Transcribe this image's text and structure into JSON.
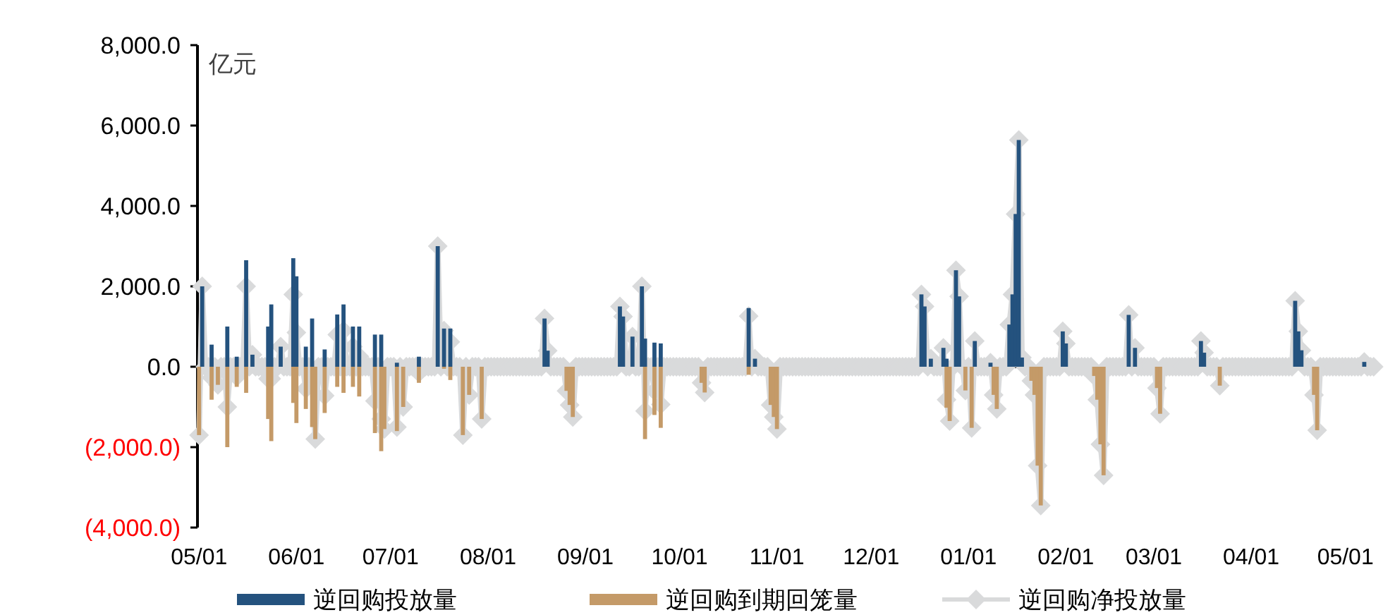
{
  "chart_data": {
    "type": "bar",
    "ylabel": "亿元",
    "legend": "bottom",
    "categories": [
      "05/01",
      null,
      null,
      null,
      null,
      null,
      null,
      null,
      null,
      null,
      null,
      null,
      null,
      null,
      null,
      null,
      null,
      null,
      null,
      null,
      null,
      null,
      null,
      null,
      null,
      null,
      null,
      null,
      null,
      null,
      null,
      "06/01",
      null,
      null,
      null,
      null,
      null,
      null,
      null,
      null,
      null,
      null,
      null,
      null,
      null,
      null,
      null,
      null,
      null,
      null,
      null,
      null,
      null,
      null,
      null,
      null,
      null,
      null,
      null,
      null,
      null,
      "07/01",
      null,
      null,
      null,
      null,
      null,
      null,
      null,
      null,
      null,
      null,
      null,
      null,
      null,
      null,
      null,
      null,
      null,
      null,
      null,
      null,
      null,
      null,
      null,
      null,
      null,
      null,
      null,
      null,
      null,
      null,
      "08/01",
      null,
      null,
      null,
      null,
      null,
      null,
      null,
      null,
      null,
      null,
      null,
      null,
      null,
      null,
      null,
      null,
      null,
      null,
      null,
      null,
      null,
      null,
      null,
      null,
      null,
      null,
      null,
      null,
      null,
      null,
      "09/01",
      null,
      null,
      null,
      null,
      null,
      null,
      null,
      null,
      null,
      null,
      null,
      null,
      null,
      null,
      null,
      null,
      null,
      null,
      null,
      null,
      null,
      null,
      null,
      null,
      null,
      null,
      null,
      null,
      null,
      "10/01",
      null,
      null,
      null,
      null,
      null,
      null,
      null,
      null,
      null,
      null,
      null,
      null,
      null,
      null,
      null,
      null,
      null,
      null,
      null,
      null,
      null,
      null,
      null,
      null,
      null,
      null,
      null,
      null,
      null,
      null,
      "11/01",
      null,
      null,
      null,
      null,
      null,
      null,
      null,
      null,
      null,
      null,
      null,
      null,
      null,
      null,
      null,
      null,
      null,
      null,
      null,
      null,
      null,
      null,
      null,
      null,
      null,
      null,
      null,
      null,
      null,
      "12/01",
      null,
      null,
      null,
      null,
      null,
      null,
      null,
      null,
      null,
      null,
      null,
      null,
      null,
      null,
      null,
      null,
      null,
      null,
      null,
      null,
      null,
      null,
      null,
      null,
      null,
      null,
      null,
      null,
      null,
      null,
      "01/01",
      null,
      null,
      null,
      null,
      null,
      null,
      null,
      null,
      null,
      null,
      null,
      null,
      null,
      null,
      null,
      null,
      null,
      null,
      null,
      null,
      null,
      null,
      null,
      null,
      null,
      null,
      null,
      null,
      null,
      null,
      "02/01",
      null,
      null,
      null,
      null,
      null,
      null,
      null,
      null,
      null,
      null,
      null,
      null,
      null,
      null,
      null,
      null,
      null,
      null,
      null,
      null,
      null,
      null,
      null,
      null,
      null,
      null,
      null,
      "03/01",
      null,
      null,
      null,
      null,
      null,
      null,
      null,
      null,
      null,
      null,
      null,
      null,
      null,
      null,
      null,
      null,
      null,
      null,
      null,
      null,
      null,
      null,
      null,
      null,
      null,
      null,
      null,
      null,
      null,
      null,
      "04/01",
      null,
      null,
      null,
      null,
      null,
      null,
      null,
      null,
      null,
      null,
      null,
      null,
      null,
      null,
      null,
      null,
      null,
      null,
      null,
      null,
      null,
      null,
      null,
      null,
      null,
      null,
      null,
      null,
      null,
      "05/01",
      null,
      null,
      null,
      null,
      null,
      null,
      null,
      null,
      null
    ],
    "series": [
      {
        "name": "逆回购投放量",
        "color": "#24527e",
        "values": [
          null,
          2000,
          null,
          null,
          550,
          null,
          null,
          null,
          null,
          1000,
          null,
          null,
          250,
          null,
          null,
          2650,
          null,
          300,
          null,
          null,
          null,
          null,
          1000,
          1550,
          null,
          null,
          500,
          null,
          null,
          null,
          2700,
          2250,
          null,
          null,
          500,
          null,
          1200,
          null,
          null,
          null,
          430,
          null,
          null,
          null,
          1300,
          null,
          1550,
          null,
          null,
          1000,
          null,
          1000,
          null,
          null,
          null,
          null,
          800,
          null,
          800,
          null,
          null,
          null,
          null,
          100,
          null,
          null,
          null,
          null,
          null,
          null,
          250,
          null,
          null,
          null,
          null,
          null,
          3000,
          null,
          950,
          null,
          950,
          null,
          null,
          null,
          null,
          null,
          null,
          null,
          null,
          null,
          null,
          null,
          null,
          null,
          null,
          null,
          null,
          null,
          null,
          null,
          null,
          null,
          null,
          null,
          null,
          null,
          null,
          null,
          null,
          null,
          1200,
          400,
          null,
          null,
          null,
          null,
          null,
          null,
          null,
          null,
          null,
          null,
          null,
          null,
          null,
          null,
          null,
          null,
          null,
          null,
          null,
          null,
          null,
          null,
          1500,
          1250,
          null,
          null,
          750,
          null,
          null,
          2000,
          700,
          null,
          null,
          600,
          null,
          580,
          null,
          null,
          null,
          null,
          null,
          null,
          null,
          null,
          null,
          null,
          null,
          null,
          null,
          null,
          null,
          null,
          null,
          null,
          null,
          null,
          null,
          null,
          null,
          null,
          null,
          null,
          null,
          1460,
          null,
          200,
          null,
          null,
          null,
          null,
          null,
          null,
          null,
          null,
          null,
          null,
          null,
          null,
          null,
          null,
          null,
          null,
          null,
          null,
          null,
          null,
          null,
          null,
          null,
          null,
          null,
          null,
          null,
          null,
          null,
          null,
          null,
          null,
          null,
          null,
          null,
          null,
          null,
          null,
          null,
          null,
          null,
          null,
          null,
          null,
          null,
          null,
          null,
          null,
          null,
          null,
          null,
          null,
          1800,
          1500,
          null,
          200,
          null,
          null,
          null,
          470,
          200,
          null,
          null,
          2400,
          1750,
          null,
          null,
          null,
          null,
          640,
          null,
          null,
          null,
          null,
          100,
          null,
          null,
          null,
          null,
          null,
          1050,
          1800,
          3800,
          5640,
          230,
          null,
          null,
          null,
          null,
          null,
          null,
          null,
          null,
          null,
          null,
          null,
          null,
          880,
          580,
          null,
          null,
          null,
          null,
          null,
          null,
          null,
          null,
          null,
          null,
          null,
          null,
          null,
          null,
          null,
          null,
          null,
          null,
          null,
          1290,
          null,
          470,
          null,
          null,
          null,
          null,
          null,
          null,
          null,
          null,
          null,
          null,
          null,
          null,
          null,
          null,
          null,
          null,
          null,
          null,
          null,
          null,
          640,
          350,
          null,
          null,
          null,
          null,
          null,
          null,
          null,
          null,
          null,
          null,
          null,
          null,
          null,
          null,
          null,
          null,
          null,
          null,
          null,
          null,
          null,
          null,
          null,
          null,
          null,
          null,
          null,
          null,
          1640,
          880,
          410,
          null,
          null,
          null,
          null,
          null,
          null,
          null,
          null,
          null,
          null,
          null,
          null,
          null,
          null,
          null,
          null,
          null,
          null,
          null,
          120,
          null,
          null,
          null
        ]
      },
      {
        "name": "逆回购到期回笼量",
        "color": "#c49a68",
        "values": [
          -1700,
          null,
          null,
          null,
          -820,
          null,
          -450,
          null,
          null,
          -2000,
          null,
          null,
          -500,
          null,
          null,
          -650,
          null,
          null,
          null,
          null,
          null,
          null,
          -1300,
          -1850,
          null,
          null,
          null,
          null,
          null,
          null,
          -900,
          -1400,
          null,
          null,
          -1050,
          null,
          -1500,
          -1800,
          null,
          null,
          -1150,
          null,
          null,
          null,
          -500,
          null,
          -650,
          null,
          null,
          -500,
          null,
          -740,
          null,
          null,
          null,
          null,
          -1650,
          null,
          -2100,
          -1550,
          null,
          null,
          null,
          -1600,
          null,
          -1000,
          null,
          null,
          null,
          null,
          -400,
          null,
          null,
          null,
          null,
          null,
          null,
          null,
          -50,
          null,
          -330,
          null,
          null,
          null,
          -1700,
          null,
          -700,
          null,
          null,
          null,
          -1300,
          null,
          null,
          null,
          null,
          null,
          null,
          null,
          null,
          null,
          null,
          null,
          null,
          null,
          null,
          null,
          null,
          null,
          null,
          null,
          null,
          null,
          null,
          null,
          null,
          null,
          null,
          -600,
          -950,
          -1250,
          null,
          null,
          null,
          null,
          null,
          null,
          null,
          null,
          null,
          null,
          null,
          null,
          null,
          null,
          null,
          null,
          null,
          null,
          null,
          null,
          null,
          null,
          -1800,
          null,
          null,
          -1200,
          null,
          -1520,
          null,
          null,
          null,
          null,
          null,
          null,
          null,
          null,
          null,
          null,
          null,
          null,
          -400,
          -640,
          null,
          null,
          null,
          null,
          null,
          null,
          null,
          null,
          null,
          null,
          null,
          null,
          null,
          -200,
          null,
          null,
          null,
          null,
          null,
          null,
          -950,
          -1250,
          -1550,
          null,
          null,
          null,
          null,
          null,
          null,
          null,
          null,
          null,
          null,
          null,
          null,
          null,
          null,
          null,
          null,
          null,
          null,
          null,
          null,
          null,
          null,
          null,
          null,
          null,
          null,
          null,
          null,
          null,
          null,
          null,
          null,
          null,
          null,
          null,
          null,
          null,
          null,
          null,
          null,
          null,
          null,
          null,
          null,
          null,
          null,
          null,
          null,
          null,
          null,
          null,
          null,
          null,
          -1020,
          -1350,
          null,
          null,
          null,
          null,
          -590,
          null,
          -1520,
          null,
          null,
          null,
          null,
          null,
          null,
          -700,
          -1050,
          null,
          null,
          null,
          null,
          null,
          null,
          null,
          null,
          null,
          null,
          -350,
          -700,
          -2460,
          -3450,
          null,
          null,
          null,
          null,
          null,
          null,
          null,
          null,
          null,
          null,
          null,
          null,
          null,
          null,
          null,
          null,
          -230,
          -820,
          -1930,
          -2700,
          null,
          null,
          null,
          null,
          null,
          null,
          null,
          null,
          null,
          null,
          null,
          null,
          null,
          null,
          null,
          null,
          -530,
          -1170,
          null,
          null,
          null,
          null,
          null,
          null,
          null,
          null,
          null,
          null,
          null,
          null,
          null,
          null,
          null,
          null,
          null,
          null,
          -470,
          null,
          null,
          null,
          null,
          null,
          null,
          null,
          null,
          null,
          null,
          null,
          null,
          null,
          null,
          null,
          null,
          null,
          null,
          null,
          null,
          null,
          null,
          null,
          null,
          null,
          null,
          null,
          null,
          null,
          -700,
          -1580,
          null,
          null,
          null,
          null,
          null,
          null,
          null,
          null,
          null,
          null,
          null,
          null,
          null,
          null,
          null,
          null,
          null,
          null
        ]
      },
      {
        "name": "逆回购净投放量",
        "type": "line",
        "color": "#d9dadb",
        "marker": "diamond",
        "values": [
          -1700,
          2000,
          0,
          0,
          -270,
          0,
          -450,
          0,
          0,
          -1000,
          0,
          0,
          -250,
          0,
          0,
          2000,
          0,
          300,
          0,
          0,
          0,
          0,
          -300,
          -300,
          0,
          0,
          500,
          0,
          0,
          0,
          1800,
          850,
          0,
          0,
          -550,
          0,
          -300,
          -1800,
          0,
          0,
          -720,
          0,
          0,
          0,
          800,
          0,
          900,
          0,
          0,
          500,
          0,
          260,
          0,
          0,
          0,
          0,
          -850,
          0,
          -1300,
          -1550,
          0,
          0,
          0,
          -1500,
          0,
          -1000,
          0,
          0,
          0,
          0,
          -150,
          0,
          0,
          0,
          0,
          0,
          3000,
          0,
          900,
          0,
          620,
          0,
          0,
          0,
          -1700,
          0,
          -700,
          0,
          0,
          0,
          -1300,
          0,
          0,
          0,
          0,
          0,
          0,
          0,
          0,
          0,
          0,
          0,
          0,
          0,
          0,
          0,
          0,
          0,
          0,
          0,
          1200,
          400,
          0,
          0,
          0,
          0,
          0,
          -600,
          -950,
          -1250,
          0,
          0,
          0,
          0,
          0,
          0,
          0,
          0,
          0,
          0,
          0,
          0,
          0,
          0,
          1500,
          1250,
          0,
          0,
          750,
          0,
          0,
          2000,
          -1100,
          0,
          0,
          -600,
          0,
          -940,
          0,
          0,
          0,
          0,
          0,
          0,
          0,
          0,
          0,
          0,
          0,
          0,
          -400,
          -640,
          0,
          0,
          0,
          0,
          0,
          0,
          0,
          0,
          0,
          0,
          0,
          0,
          0,
          1260,
          0,
          200,
          0,
          0,
          0,
          0,
          -950,
          -1250,
          -1550,
          0,
          0,
          0,
          0,
          0,
          0,
          0,
          0,
          0,
          0,
          0,
          0,
          0,
          0,
          0,
          0,
          0,
          0,
          0,
          0,
          0,
          0,
          0,
          0,
          0,
          0,
          0,
          0,
          0,
          0,
          0,
          0,
          0,
          0,
          0,
          0,
          0,
          0,
          0,
          0,
          0,
          0,
          0,
          0,
          0,
          1800,
          1500,
          0,
          200,
          0,
          0,
          0,
          470,
          -820,
          -1350,
          0,
          2400,
          1750,
          0,
          -590,
          0,
          -1520,
          640,
          0,
          0,
          0,
          0,
          100,
          -700,
          -1050,
          0,
          0,
          0,
          1050,
          1800,
          3800,
          5640,
          230,
          0,
          0,
          -350,
          -700,
          -2460,
          -3450,
          0,
          0,
          0,
          0,
          0,
          0,
          880,
          580,
          0,
          0,
          0,
          0,
          0,
          0,
          0,
          0,
          -230,
          -820,
          -1930,
          -2700,
          0,
          0,
          0,
          0,
          0,
          0,
          0,
          1290,
          0,
          470,
          0,
          0,
          0,
          0,
          0,
          0,
          -530,
          -1170,
          0,
          0,
          0,
          0,
          0,
          0,
          0,
          0,
          0,
          0,
          0,
          0,
          640,
          350,
          0,
          0,
          0,
          0,
          -470,
          0,
          0,
          0,
          0,
          0,
          0,
          0,
          0,
          0,
          0,
          0,
          0,
          0,
          0,
          0,
          0,
          0,
          0,
          0,
          0,
          0,
          0,
          0,
          1640,
          880,
          410,
          0,
          0,
          0,
          -700,
          -1580,
          0,
          0,
          0,
          0,
          0,
          0,
          0,
          0,
          0,
          0,
          0,
          0,
          0,
          0,
          120,
          0,
          0,
          0
        ]
      }
    ],
    "ylim": [
      -4000,
      8000
    ],
    "yticks": [
      {
        "value": -4000,
        "label": "(4,000.0)"
      },
      {
        "value": -2000,
        "label": "(2,000.0)"
      },
      {
        "value": 0,
        "label": "0.0"
      },
      {
        "value": 2000,
        "label": "2,000.0"
      },
      {
        "value": 4000,
        "label": "4,000.0"
      },
      {
        "value": 6000,
        "label": "6,000.0"
      },
      {
        "value": 8000,
        "label": "8,000.0"
      }
    ]
  }
}
